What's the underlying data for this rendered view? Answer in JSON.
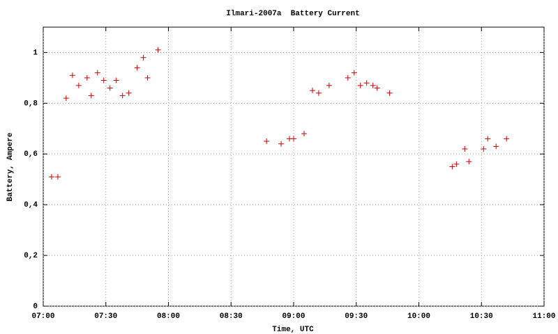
{
  "chart_data": {
    "type": "scatter",
    "title": "Ilmari-2007a  Battery Current",
    "x_label": "Time, UTC",
    "y_label": "Battery, Ampere",
    "series": [
      {
        "color": "#cc0000",
        "x": [
          "07:04",
          "07:07",
          "07:11",
          "07:14",
          "07:17",
          "07:21",
          "07:23",
          "07:26",
          "07:29",
          "07:32",
          "07:35",
          "07:38",
          "07:41",
          "07:45",
          "07:48",
          "07:50",
          "07:55",
          "08:47",
          "08:54",
          "08:58",
          "09:00",
          "09:05",
          "09:09",
          "09:12",
          "09:17",
          "09:26",
          "09:29",
          "09:32",
          "09:35",
          "09:38",
          "09:40",
          "09:46",
          "10:16",
          "10:18",
          "10:22",
          "10:24",
          "10:31",
          "10:33",
          "10:37",
          "10:42"
        ],
        "values": [
          0.51,
          0.51,
          0.82,
          0.91,
          0.87,
          0.9,
          0.83,
          0.92,
          0.89,
          0.86,
          0.89,
          0.83,
          0.84,
          0.94,
          0.98,
          0.9,
          1.01,
          0.65,
          0.64,
          0.66,
          0.66,
          0.68,
          0.85,
          0.84,
          0.87,
          0.9,
          0.92,
          0.87,
          0.88,
          0.87,
          0.86,
          0.84,
          0.55,
          0.56,
          0.62,
          0.57,
          0.62,
          0.66,
          0.63,
          0.66
        ]
      }
    ],
    "xlim": [
      "07:00",
      "11:00"
    ],
    "xticks": [
      "07:00",
      "07:30",
      "08:00",
      "08:30",
      "09:00",
      "09:30",
      "10:00",
      "10:30",
      "11:00"
    ],
    "ylim": [
      0,
      1.1
    ],
    "yticks": [
      0,
      {
        "value": 0.2,
        "label": "0,2"
      },
      {
        "value": 0.4,
        "label": "0,4"
      },
      {
        "value": 0.6,
        "label": "0,6"
      },
      {
        "value": 0.8,
        "label": "0,8"
      },
      1
    ],
    "grid": true
  }
}
